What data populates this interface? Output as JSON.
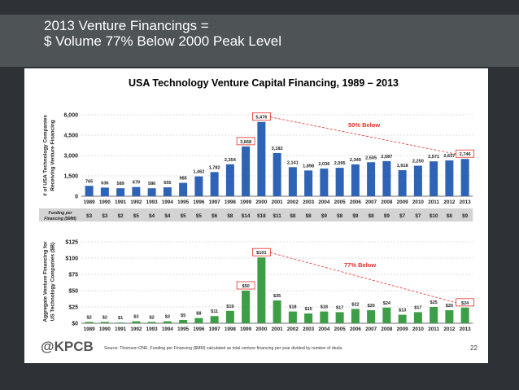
{
  "slide": {
    "title_line1": "2013 Venture Financings =",
    "title_line2": "$ Volume 77% Below 2000 Peak Level",
    "footer_logo": "@KPCB",
    "footer_source": "Source: Thomson ONE. Funding per Financing ($MM) calculated as total venture financing per year divided by number of deals.",
    "page_number": "22"
  },
  "colors": {
    "title_bar": "#4e5356",
    "background": "#2e3236",
    "blue_bar": "#2f63b6",
    "green_bar": "#3d9e47",
    "callout_red": "#e0302a",
    "table_bg": "#d3d3d3"
  },
  "chart_data": [
    {
      "type": "bar",
      "title": "USA Technology Venture Capital Financing, 1989 – 2013",
      "ylabel": "# of USA Technology Companies Receiving Venture Financing",
      "xlabel": "",
      "ylim": [
        0,
        6000
      ],
      "yticks": [
        "0",
        "1,500",
        "3,000",
        "4,500",
        "6,000"
      ],
      "categories": [
        "1989",
        "1990",
        "1991",
        "1992",
        "1993",
        "1994",
        "1995",
        "1996",
        "1997",
        "1998",
        "1999",
        "2000",
        "2001",
        "2002",
        "2003",
        "2004",
        "2005",
        "2006",
        "2007",
        "2008",
        "2009",
        "2010",
        "2011",
        "2012",
        "2013"
      ],
      "values": [
        765,
        636,
        589,
        679,
        586,
        655,
        985,
        1462,
        1782,
        2354,
        3668,
        5476,
        3182,
        2141,
        1898,
        2036,
        2095,
        2349,
        2505,
        2587,
        1918,
        2250,
        2571,
        2637,
        2746
      ],
      "labels": [
        "765",
        "636",
        "589",
        "679",
        "586",
        "655",
        "985",
        "1,462",
        "1,782",
        "2,354",
        "3,668",
        "5,476",
        "3,182",
        "2,141",
        "1,898",
        "2,036",
        "2,095",
        "2,349",
        "2,505",
        "2,587",
        "1,918",
        "2,250",
        "2,571",
        "2,637",
        "2,746"
      ],
      "boxed_indices": [
        10,
        11,
        24
      ],
      "annotation": "50% Below",
      "color": "#2f63b6"
    },
    {
      "type": "table",
      "row_label": "Funding per Financing ($MM)",
      "values": [
        "$3",
        "$3",
        "$2",
        "$5",
        "$4",
        "$4",
        "$5",
        "$5",
        "$6",
        "$8",
        "$14",
        "$18",
        "$11",
        "$8",
        "$8",
        "$9",
        "$8",
        "$9",
        "$8",
        "$9",
        "$7",
        "$7",
        "$10",
        "$8",
        "$9"
      ]
    },
    {
      "type": "bar",
      "ylabel": "Aggregate Venture Financing for US Technology Companies ($B)",
      "xlabel": "",
      "ylim": [
        0,
        125
      ],
      "yticks": [
        "$0",
        "$25",
        "$50",
        "$75",
        "$100",
        "$125"
      ],
      "categories": [
        "1989",
        "1990",
        "1991",
        "1992",
        "1993",
        "1994",
        "1995",
        "1996",
        "1997",
        "1998",
        "1999",
        "2000",
        "2001",
        "2002",
        "2003",
        "2004",
        "2005",
        "2006",
        "2007",
        "2008",
        "2009",
        "2010",
        "2011",
        "2012",
        "2013"
      ],
      "values": [
        2,
        2,
        1,
        3,
        2,
        3,
        5,
        8,
        11,
        19,
        50,
        101,
        35,
        18,
        15,
        18,
        17,
        22,
        20,
        24,
        13,
        17,
        25,
        20,
        24
      ],
      "labels": [
        "$2",
        "$2",
        "$1",
        "$3",
        "$2",
        "$3",
        "$5",
        "$8",
        "$11",
        "$19",
        "$50",
        "$101",
        "$35",
        "$18",
        "$15",
        "$18",
        "$17",
        "$22",
        "$20",
        "$24",
        "$13",
        "$17",
        "$25",
        "$20",
        "$24"
      ],
      "boxed_indices": [
        10,
        11,
        24
      ],
      "annotation": "77% Below",
      "color": "#3d9e47"
    }
  ]
}
